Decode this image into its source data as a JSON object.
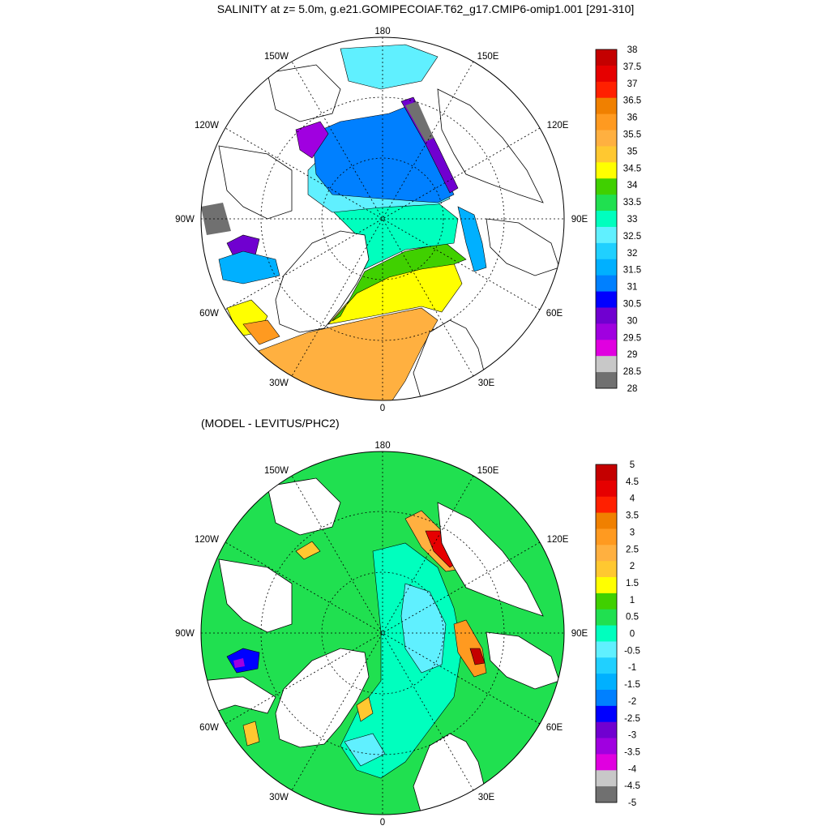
{
  "chart_data": [
    {
      "type": "heatmap",
      "projection": "north polar stereographic",
      "title": "SALINITY at z=   5.0m, g.e21.GOMIPECOIAF.T62_g17.CMIP6-omip1.001 [291-310]",
      "longitude_labels": [
        "180",
        "150E",
        "120E",
        "90E",
        "60E",
        "30E",
        "0",
        "30W",
        "60W",
        "90W",
        "120W",
        "150W"
      ],
      "colorbar": {
        "levels": [
          "38",
          "37.5",
          "37",
          "36.5",
          "36",
          "35.5",
          "35",
          "34.5",
          "34",
          "33.5",
          "33",
          "32.5",
          "32",
          "31.5",
          "31",
          "30.5",
          "30",
          "29.5",
          "29",
          "28.5",
          "28"
        ],
        "colors": [
          "#c40000",
          "#e60000",
          "#ff2000",
          "#f08000",
          "#ff9a20",
          "#ffb040",
          "#ffc830",
          "#ffff00",
          "#40d000",
          "#20e050",
          "#00ffbe",
          "#60f0ff",
          "#20d0ff",
          "#00b0ff",
          "#0080ff",
          "#0000ff",
          "#7000d0",
          "#a000e0",
          "#e000e0",
          "#c8c8c8",
          "#707070"
        ]
      }
    },
    {
      "type": "heatmap",
      "projection": "north polar stereographic",
      "title": "(MODEL - LEVITUS/PHC2)",
      "longitude_labels": [
        "180",
        "150E",
        "120E",
        "90E",
        "60E",
        "30E",
        "0",
        "30W",
        "60W",
        "90W",
        "120W",
        "150W"
      ],
      "colorbar": {
        "levels": [
          "5",
          "4.5",
          "4",
          "3.5",
          "3",
          "2.5",
          "2",
          "1.5",
          "1",
          "0.5",
          "0",
          "-0.5",
          "-1",
          "-1.5",
          "-2",
          "-2.5",
          "-3",
          "-3.5",
          "-4",
          "-4.5",
          "-5"
        ],
        "colors": [
          "#c40000",
          "#e60000",
          "#ff2000",
          "#f08000",
          "#ff9a20",
          "#ffb040",
          "#ffc830",
          "#ffff00",
          "#40d000",
          "#20e050",
          "#00ffbe",
          "#60f0ff",
          "#20d0ff",
          "#00b0ff",
          "#0080ff",
          "#0000ff",
          "#7000d0",
          "#a000e0",
          "#e000e0",
          "#c8c8c8",
          "#707070"
        ]
      }
    }
  ]
}
